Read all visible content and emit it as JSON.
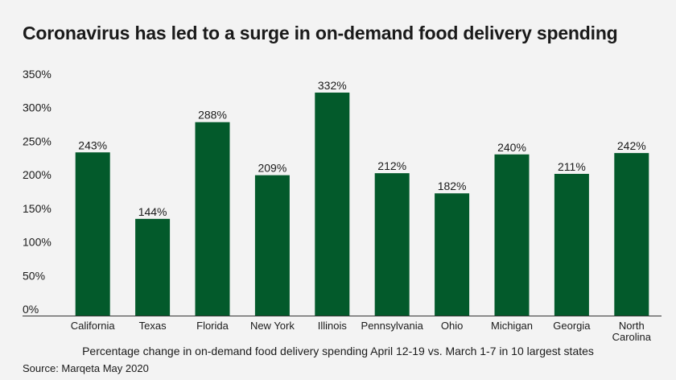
{
  "title": "Coronavirus has led to a surge in on-demand food delivery spending",
  "caption": "Percentage change in on-demand food delivery spending April 12-19 vs. March 1-7 in 10 largest states",
  "source": "Source: Marqeta May 2020",
  "colors": {
    "bar": "#035a2b",
    "axis": "#333333",
    "background": "#f3f3f3"
  },
  "chart_data": {
    "type": "bar",
    "categories": [
      "California",
      "Texas",
      "Florida",
      "New York",
      "Illinois",
      "Pennsylvania",
      "Ohio",
      "Michigan",
      "Georgia",
      "North Carolina"
    ],
    "category_lines": [
      [
        "California"
      ],
      [
        "Texas"
      ],
      [
        "Florida"
      ],
      [
        "New York"
      ],
      [
        "Illinois"
      ],
      [
        "Pennsylvania"
      ],
      [
        "Ohio"
      ],
      [
        "Michigan"
      ],
      [
        "Georgia"
      ],
      [
        "North",
        "Carolina"
      ]
    ],
    "values": [
      243,
      144,
      288,
      209,
      332,
      212,
      182,
      240,
      211,
      242
    ],
    "value_labels": [
      "243%",
      "144%",
      "288%",
      "209%",
      "332%",
      "212%",
      "182%",
      "240%",
      "211%",
      "242%"
    ],
    "y_ticks": [
      0,
      50,
      100,
      150,
      200,
      250,
      300,
      350
    ],
    "y_tick_labels": [
      "0%",
      "50%",
      "100%",
      "150%",
      "200%",
      "250%",
      "300%",
      "350%"
    ],
    "ylim": [
      0,
      350
    ],
    "grid": false
  }
}
